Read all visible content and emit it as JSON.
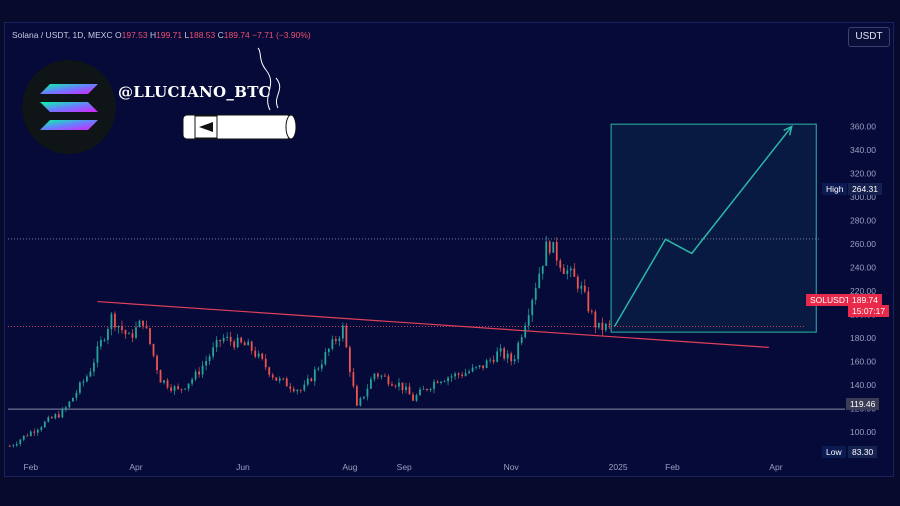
{
  "header": {
    "symbol_text": "Solana / USDT, 1D, MEXC",
    "o_label": "O",
    "o_value": "197.53",
    "h_label": "H",
    "h_value": "199.71",
    "l_label": "L",
    "l_value": "188.53",
    "c_label": "C",
    "c_value": "189.74",
    "change": "−7.71 (−3.90%)"
  },
  "currency": "USDT",
  "handle": "@LLUCIANO_BTC",
  "tags": {
    "high_label": "High",
    "high_value": "264.31",
    "low_label": "Low",
    "low_value": "83.30",
    "support_value": "119.46",
    "symbol": "SOLUSDT",
    "price": "189.74",
    "countdown": "15:07:17"
  },
  "colors": {
    "up": "#26a69a",
    "down": "#ef5350",
    "background": "#050a38",
    "trendline": "#e0405a",
    "projection": "#2bb8a8"
  },
  "chart_data": {
    "type": "candlestick",
    "title": "",
    "x_ticks": [
      "Feb",
      "Apr",
      "Jun",
      "Aug",
      "Sep",
      "Nov",
      "2025",
      "Feb",
      "Apr"
    ],
    "y_ticks": [
      100,
      120,
      140,
      160,
      180,
      200,
      220,
      240,
      260,
      280,
      300,
      320,
      340,
      360
    ],
    "ylim": [
      85,
      362
    ],
    "price_path": [
      [
        "2024-01-20",
        88
      ],
      [
        "2024-02-05",
        104
      ],
      [
        "2024-02-20",
        118
      ],
      [
        "2024-03-05",
        150
      ],
      [
        "2024-03-18",
        198
      ],
      [
        "2024-03-28",
        180
      ],
      [
        "2024-04-05",
        195
      ],
      [
        "2024-04-15",
        145
      ],
      [
        "2024-04-25",
        135
      ],
      [
        "2024-05-05",
        148
      ],
      [
        "2024-05-20",
        180
      ],
      [
        "2024-06-05",
        172
      ],
      [
        "2024-06-20",
        145
      ],
      [
        "2024-07-05",
        135
      ],
      [
        "2024-07-20",
        170
      ],
      [
        "2024-07-28",
        188
      ],
      [
        "2024-08-05",
        120
      ],
      [
        "2024-08-15",
        150
      ],
      [
        "2024-08-30",
        140
      ],
      [
        "2024-09-06",
        128
      ],
      [
        "2024-09-20",
        145
      ],
      [
        "2024-10-05",
        150
      ],
      [
        "2024-10-15",
        155
      ],
      [
        "2024-10-25",
        168
      ],
      [
        "2024-11-02",
        160
      ],
      [
        "2024-11-10",
        200
      ],
      [
        "2024-11-22",
        262
      ],
      [
        "2024-12-01",
        240
      ],
      [
        "2024-12-10",
        225
      ],
      [
        "2024-12-20",
        188
      ],
      [
        "2024-12-27",
        189.74
      ]
    ],
    "price_high": 264.31,
    "price_low": 83.3,
    "support_level": 119.46,
    "last_price": 189.74,
    "trendline": [
      [
        "2024-03-10",
        211
      ],
      [
        "2025-03-28",
        172
      ]
    ],
    "projection": [
      [
        "2024-12-30",
        190
      ],
      [
        "2025-01-28",
        264
      ],
      [
        "2025-02-12",
        252
      ],
      [
        "2025-04-10",
        360
      ]
    ],
    "target_box": {
      "x_from": "2024-12-28",
      "x_to": "2025-04-24",
      "y_from": 185,
      "y_to": 362
    }
  }
}
